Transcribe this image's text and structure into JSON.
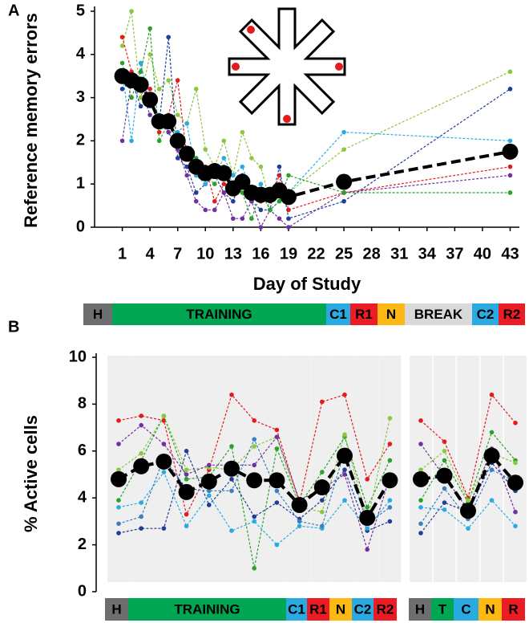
{
  "chart_data": [
    {
      "type": "line",
      "panel_label": "A",
      "y_label": "Reference memory errors",
      "x_label": "Day of Study",
      "x": [
        1,
        2,
        3,
        4,
        5,
        6,
        7,
        8,
        9,
        10,
        11,
        12,
        13,
        14,
        15,
        16,
        17,
        18,
        19,
        25,
        43
      ],
      "xlim": [
        -2,
        44
      ],
      "xticks": [
        1,
        4,
        7,
        10,
        13,
        16,
        19,
        22,
        25,
        28,
        31,
        34,
        37,
        40,
        43
      ],
      "ylim": [
        0,
        5
      ],
      "yticks": [
        0,
        1,
        2,
        3,
        4,
        5
      ],
      "line_style": "dashed",
      "series": [
        {
          "color": "#8dc63f",
          "values": [
            4.2,
            5.0,
            3.0,
            4.0,
            3.2,
            3.4,
            2.6,
            2.4,
            3.2,
            1.8,
            1.4,
            2.0,
            1.2,
            2.2,
            1.6,
            1.4,
            0.6,
            1.0,
            0.8,
            1.8,
            3.6
          ]
        },
        {
          "color": "#e41a1c",
          "values": [
            4.4,
            3.6,
            3.4,
            3.2,
            2.2,
            2.6,
            3.4,
            1.6,
            1.2,
            1.4,
            0.6,
            1.0,
            0.8,
            1.0,
            0.8,
            0.6,
            0.6,
            1.2,
            0.4,
            0.8,
            1.4
          ]
        },
        {
          "color": "#1f3d99",
          "values": [
            3.2,
            3.4,
            2.8,
            3.0,
            2.4,
            4.4,
            1.6,
            1.4,
            0.8,
            1.0,
            1.2,
            0.8,
            0.6,
            1.2,
            0.6,
            0.4,
            0.4,
            1.4,
            0.2,
            0.6,
            3.2
          ]
        },
        {
          "color": "#29abe2",
          "values": [
            3.6,
            2.0,
            3.8,
            2.8,
            2.6,
            2.2,
            2.2,
            2.4,
            1.2,
            1.0,
            1.2,
            1.6,
            1.2,
            1.4,
            0.8,
            1.0,
            0.4,
            0.6,
            0.8,
            2.2,
            2.0
          ]
        },
        {
          "color": "#7030a0",
          "values": [
            2.0,
            3.4,
            3.2,
            2.6,
            2.4,
            2.2,
            1.8,
            1.2,
            0.6,
            0.4,
            0.4,
            0.8,
            0.2,
            0.2,
            0.6,
            0.0,
            0.4,
            0.2,
            0.0,
            0.8,
            1.2
          ]
        },
        {
          "color": "#2ca02c",
          "values": [
            3.8,
            3.0,
            3.6,
            4.6,
            2.0,
            2.4,
            2.0,
            1.8,
            1.6,
            1.2,
            1.0,
            1.4,
            1.0,
            0.8,
            0.2,
            0.8,
            0.4,
            0.6,
            1.2,
            0.8,
            0.8
          ]
        },
        {
          "color": "#000000",
          "values": [
            3.5,
            3.4,
            3.3,
            2.95,
            2.45,
            2.45,
            2.0,
            1.7,
            1.4,
            1.25,
            1.3,
            1.25,
            0.9,
            1.05,
            0.8,
            0.75,
            0.75,
            0.85,
            0.7,
            1.05,
            1.75
          ]
        }
      ],
      "phases": [
        {
          "label": "H",
          "color": "#6d6e70"
        },
        {
          "label": "TRAINING",
          "color": "#00a651"
        },
        {
          "label": "C1",
          "color": "#29abe2"
        },
        {
          "label": "R1",
          "color": "#ed1c24"
        },
        {
          "label": "N",
          "color": "#fdb813"
        },
        {
          "label": "BREAK",
          "color": "#d9d9d9"
        },
        {
          "label": "C2",
          "color": "#29abe2"
        },
        {
          "label": "R2",
          "color": "#ed1c24"
        }
      ]
    },
    {
      "type": "line",
      "panel_label": "B",
      "y_label": "% Active cells",
      "ylim": [
        0,
        10
      ],
      "yticks": [
        0,
        2,
        4,
        6,
        8,
        10
      ],
      "line_style": "dashed",
      "series": [
        {
          "color": "#e41a1c",
          "values": [
            7.3,
            7.5,
            7.3,
            3.3,
            5.2,
            8.4,
            7.3,
            6.9,
            3.8,
            8.1,
            8.4,
            4.8,
            6.3
          ]
        },
        {
          "color": "#2ca02c",
          "values": [
            3.9,
            5.6,
            7.5,
            4.8,
            4.9,
            6.2,
            1.0,
            6.1,
            3.7,
            5.1,
            6.6,
            3.6,
            5.6
          ]
        },
        {
          "color": "#8dc63f",
          "values": [
            5.2,
            5.9,
            7.5,
            5.2,
            5.3,
            5.2,
            6.2,
            6.6,
            3.6,
            3.4,
            6.7,
            3.0,
            7.4
          ]
        },
        {
          "color": "#7030a0",
          "values": [
            6.3,
            7.1,
            6.3,
            5.0,
            5.4,
            5.4,
            5.4,
            6.6,
            3.9,
            4.4,
            5.0,
            1.8,
            4.9
          ]
        },
        {
          "color": "#1f3d99",
          "values": [
            2.5,
            2.7,
            2.7,
            6.0,
            3.7,
            4.8,
            3.2,
            3.8,
            3.1,
            3.9,
            5.2,
            2.6,
            3.0
          ]
        },
        {
          "color": "#29abe2",
          "values": [
            3.6,
            3.8,
            5.1,
            2.8,
            4.1,
            2.6,
            3.0,
            2.0,
            2.8,
            2.7,
            3.9,
            2.7,
            3.9
          ]
        },
        {
          "color": "#3a7fc1",
          "values": [
            2.9,
            3.2,
            5.7,
            4.4,
            4.3,
            4.3,
            6.5,
            4.3,
            3.0,
            2.8,
            6.0,
            2.9,
            3.6
          ]
        },
        {
          "color": "#000000",
          "values": [
            4.8,
            5.35,
            5.55,
            4.25,
            4.7,
            5.25,
            4.75,
            4.75,
            3.7,
            4.45,
            5.8,
            3.15,
            4.75
          ]
        }
      ],
      "phases": [
        {
          "label": "H",
          "color": "#6d6e70"
        },
        {
          "label": "TRAINING",
          "color": "#00a651"
        },
        {
          "label": "C1",
          "color": "#29abe2"
        },
        {
          "label": "R1",
          "color": "#ed1c24"
        },
        {
          "label": "N",
          "color": "#fdb813"
        },
        {
          "label": "C2",
          "color": "#29abe2"
        },
        {
          "label": "R2",
          "color": "#ed1c24"
        }
      ]
    },
    {
      "type": "line",
      "ylim": [
        0,
        10
      ],
      "line_style": "dashed",
      "series": [
        {
          "color": "#e41a1c",
          "values": [
            7.3,
            6.4,
            4.0,
            8.4,
            7.2
          ]
        },
        {
          "color": "#2ca02c",
          "values": [
            3.9,
            5.6,
            3.8,
            6.8,
            5.6
          ]
        },
        {
          "color": "#8dc63f",
          "values": [
            5.2,
            6.0,
            3.9,
            5.9,
            5.5
          ]
        },
        {
          "color": "#7030a0",
          "values": [
            6.3,
            4.9,
            3.5,
            6.1,
            3.4
          ]
        },
        {
          "color": "#1f3d99",
          "values": [
            2.5,
            3.8,
            3.4,
            5.5,
            4.3
          ]
        },
        {
          "color": "#29abe2",
          "values": [
            3.6,
            3.5,
            2.7,
            3.9,
            2.8
          ]
        },
        {
          "color": "#3a7fc1",
          "values": [
            2.9,
            4.4,
            3.1,
            5.2,
            4.7
          ]
        },
        {
          "color": "#000000",
          "values": [
            4.8,
            4.95,
            3.45,
            5.8,
            4.65
          ]
        }
      ],
      "phases": [
        {
          "label": "H",
          "color": "#6d6e70"
        },
        {
          "label": "T",
          "color": "#00a651"
        },
        {
          "label": "C",
          "color": "#29abe2"
        },
        {
          "label": "N",
          "color": "#fdb813"
        },
        {
          "label": "R",
          "color": "#ed1c24"
        }
      ]
    }
  ]
}
